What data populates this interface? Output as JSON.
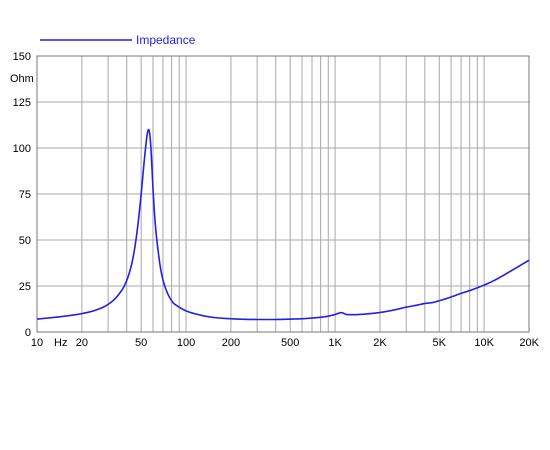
{
  "chart_data": {
    "type": "line",
    "title": "",
    "xlabel": "",
    "ylabel": "",
    "y_unit": "Ohm",
    "x_unit": "Hz",
    "x_scale": "log",
    "xlim": [
      10,
      20000
    ],
    "ylim": [
      0,
      150
    ],
    "grid": true,
    "legend_placement": "top-left",
    "y_ticks": [
      {
        "value": 0,
        "label": "0"
      },
      {
        "value": 25,
        "label": "25"
      },
      {
        "value": 50,
        "label": "50"
      },
      {
        "value": 75,
        "label": "75"
      },
      {
        "value": 100,
        "label": "100"
      },
      {
        "value": 125,
        "label": "125"
      },
      {
        "value": 150,
        "label": "150"
      }
    ],
    "x_ticks": [
      {
        "value": 10,
        "label": "10"
      },
      {
        "value": 20,
        "label": "20"
      },
      {
        "value": 50,
        "label": "50"
      },
      {
        "value": 100,
        "label": "100"
      },
      {
        "value": 200,
        "label": "200"
      },
      {
        "value": 500,
        "label": "500"
      },
      {
        "value": 1000,
        "label": "1K"
      },
      {
        "value": 2000,
        "label": "2K"
      },
      {
        "value": 5000,
        "label": "5K"
      },
      {
        "value": 10000,
        "label": "10K"
      },
      {
        "value": 20000,
        "label": "20K"
      }
    ],
    "colors": {
      "series": "#1f1fe6",
      "grid": "#a8a8a8",
      "axis": "#777777"
    },
    "series": [
      {
        "name": "Impedance",
        "x": [
          10,
          15,
          20,
          25,
          30,
          35,
          40,
          44,
          47,
          50,
          52,
          54,
          55,
          56,
          57,
          58,
          59,
          60,
          62,
          65,
          68,
          72,
          80,
          90,
          100,
          120,
          150,
          200,
          300,
          400,
          500,
          600,
          700,
          800,
          900,
          1000,
          1100,
          1200,
          1300,
          1500,
          2000,
          2500,
          3000,
          3500,
          4000,
          4500,
          5000,
          6000,
          7000,
          8000,
          10000,
          12000,
          15000,
          20000
        ],
        "y": [
          7,
          8.5,
          10,
          12,
          15,
          20,
          28,
          40,
          55,
          75,
          90,
          103,
          108,
          110,
          108,
          101,
          90,
          78,
          60,
          44,
          33,
          25,
          17,
          13.5,
          11.5,
          9.5,
          8,
          7.2,
          6.8,
          6.8,
          7,
          7.2,
          7.6,
          8,
          8.6,
          9.5,
          10.5,
          9.5,
          9.4,
          9.6,
          10.6,
          12,
          13.5,
          14.5,
          15.5,
          16,
          17,
          19,
          21,
          22.5,
          25.5,
          28.5,
          33,
          39
        ]
      }
    ]
  }
}
